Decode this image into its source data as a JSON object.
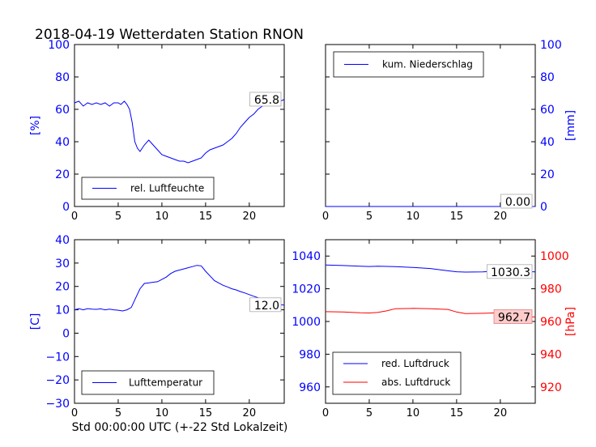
{
  "figure": {
    "title": "2018-04-19 Wetterdaten Station RNON",
    "xlabel": "Std 00:00:00 UTC (+-22 Std Lokalzeit)"
  },
  "colors": {
    "blue": "#0000ff",
    "red": "#ff0000",
    "black": "#000000",
    "badge_fill": "#ffcccc"
  },
  "chart_data": [
    {
      "id": "humidity",
      "type": "line",
      "ylabel": "[%]",
      "ylabel_side": "left",
      "xlim": [
        0,
        24
      ],
      "ylim": [
        0,
        100
      ],
      "xticks": [
        0,
        5,
        10,
        15,
        20
      ],
      "yticks": [
        0,
        20,
        40,
        60,
        80,
        100
      ],
      "legend": "bottom-left",
      "series": [
        {
          "name": "rel. Luftfeuchte",
          "color": "#0000ff",
          "axis": "left",
          "x": [
            0,
            0.5,
            1,
            1.5,
            2,
            2.5,
            3,
            3.5,
            4,
            4.5,
            5,
            5.3,
            5.7,
            6,
            6.3,
            6.6,
            6.9,
            7.2,
            7.5,
            8,
            8.5,
            9,
            9.5,
            10,
            10.5,
            11,
            11.5,
            12,
            12.5,
            13,
            13.5,
            14,
            14.5,
            15,
            15.5,
            16,
            16.5,
            17,
            17.5,
            18,
            18.5,
            19,
            19.5,
            20,
            20.5,
            21,
            21.5,
            22,
            22.5,
            23,
            23.5,
            24
          ],
          "y": [
            64,
            65,
            62,
            64,
            63,
            64,
            63,
            64,
            62,
            64,
            64,
            63,
            65,
            63,
            60,
            52,
            40,
            36,
            34,
            38,
            41,
            38,
            35,
            32,
            31,
            30,
            29,
            28,
            28,
            27,
            28,
            29,
            30,
            33,
            35,
            36,
            37,
            38,
            40,
            42,
            45,
            49,
            52,
            55,
            57,
            60,
            62,
            63,
            64,
            64,
            65,
            66
          ],
          "end_label": "65.8"
        }
      ]
    },
    {
      "id": "precipitation",
      "type": "line",
      "ylabel": "[mm]",
      "ylabel_side": "right",
      "xlim": [
        0,
        24
      ],
      "ylim": [
        0,
        100
      ],
      "xticks": [
        0,
        5,
        10,
        15,
        20
      ],
      "yticks": [
        0,
        20,
        40,
        60,
        80,
        100
      ],
      "legend": "top-left",
      "series": [
        {
          "name": "kum. Niederschlag",
          "color": "#0000ff",
          "axis": "right",
          "x": [
            0,
            24
          ],
          "y": [
            0,
            0
          ],
          "end_label": "0.00"
        }
      ]
    },
    {
      "id": "temperature",
      "type": "line",
      "ylabel": "[C]",
      "ylabel_side": "left",
      "xlim": [
        0,
        24
      ],
      "ylim": [
        -30,
        40
      ],
      "xticks": [
        0,
        5,
        10,
        15,
        20
      ],
      "yticks": [
        -30,
        -20,
        -10,
        0,
        10,
        20,
        30,
        40
      ],
      "legend": "bottom-left",
      "series": [
        {
          "name": "Lufttemperatur",
          "color": "#0000ff",
          "axis": "left",
          "x": [
            0,
            0.5,
            1,
            1.5,
            2,
            2.5,
            3,
            3.5,
            4,
            4.5,
            5,
            5.5,
            6,
            6.5,
            7,
            7.5,
            8,
            8.5,
            9,
            9.5,
            10,
            10.5,
            11,
            11.5,
            12,
            12.5,
            13,
            13.5,
            14,
            14.5,
            15,
            15.5,
            16,
            16.5,
            17,
            17.5,
            18,
            18.5,
            19,
            19.5,
            20,
            20.5,
            21,
            21.5,
            22,
            22.5,
            23,
            23.5,
            24
          ],
          "y": [
            10,
            10.5,
            10,
            10.5,
            10.3,
            10.2,
            10.4,
            10,
            10.3,
            10,
            9.8,
            9.5,
            10,
            11,
            15,
            19,
            21.3,
            21.5,
            21.8,
            22,
            23,
            24,
            25.5,
            26.5,
            27,
            27.5,
            28,
            28.5,
            29,
            28.8,
            26.5,
            24.5,
            22.5,
            21.5,
            20.5,
            19.8,
            19,
            18.5,
            17.8,
            17.2,
            16.5,
            15.8,
            15.2,
            14.5,
            13.8,
            13,
            12.5,
            12.2,
            12
          ]
        }
      ],
      "end_label": "12.0"
    },
    {
      "id": "pressure",
      "type": "line",
      "ylabel": "[hPa]",
      "ylabel_side": "right",
      "xlim": [
        0,
        24
      ],
      "ylim": [
        950,
        1050
      ],
      "ylim_right": [
        910,
        1010
      ],
      "xticks": [
        0,
        5,
        10,
        15,
        20
      ],
      "yticks": [
        960,
        980,
        1000,
        1020,
        1040
      ],
      "yticks_right": [
        920,
        940,
        960,
        980,
        1000
      ],
      "legend": "bottom-left",
      "series": [
        {
          "name": "red. Luftdruck",
          "color": "#0000ff",
          "axis": "left",
          "x": [
            0,
            2,
            4,
            5,
            6,
            8,
            10,
            12,
            14,
            15,
            16,
            18,
            20,
            22,
            24
          ],
          "y": [
            1034.5,
            1034.2,
            1033.8,
            1033.6,
            1033.8,
            1033.5,
            1033,
            1032.4,
            1031,
            1030.4,
            1030.2,
            1030.3,
            1031,
            1030.8,
            1030.3
          ],
          "end_label": "1030.3"
        },
        {
          "name": "abs. Luftdruck",
          "color": "#ff0000",
          "axis": "right",
          "x": [
            0,
            2,
            4,
            5,
            6,
            7,
            8,
            10,
            12,
            14,
            15,
            16,
            18,
            20,
            22,
            24
          ],
          "y": [
            966,
            965.8,
            965.3,
            965.2,
            965.6,
            966.5,
            967.8,
            968,
            967.8,
            967.4,
            965.8,
            964.8,
            965,
            965.3,
            963.4,
            962.7
          ],
          "end_label": "962.7"
        }
      ]
    }
  ]
}
